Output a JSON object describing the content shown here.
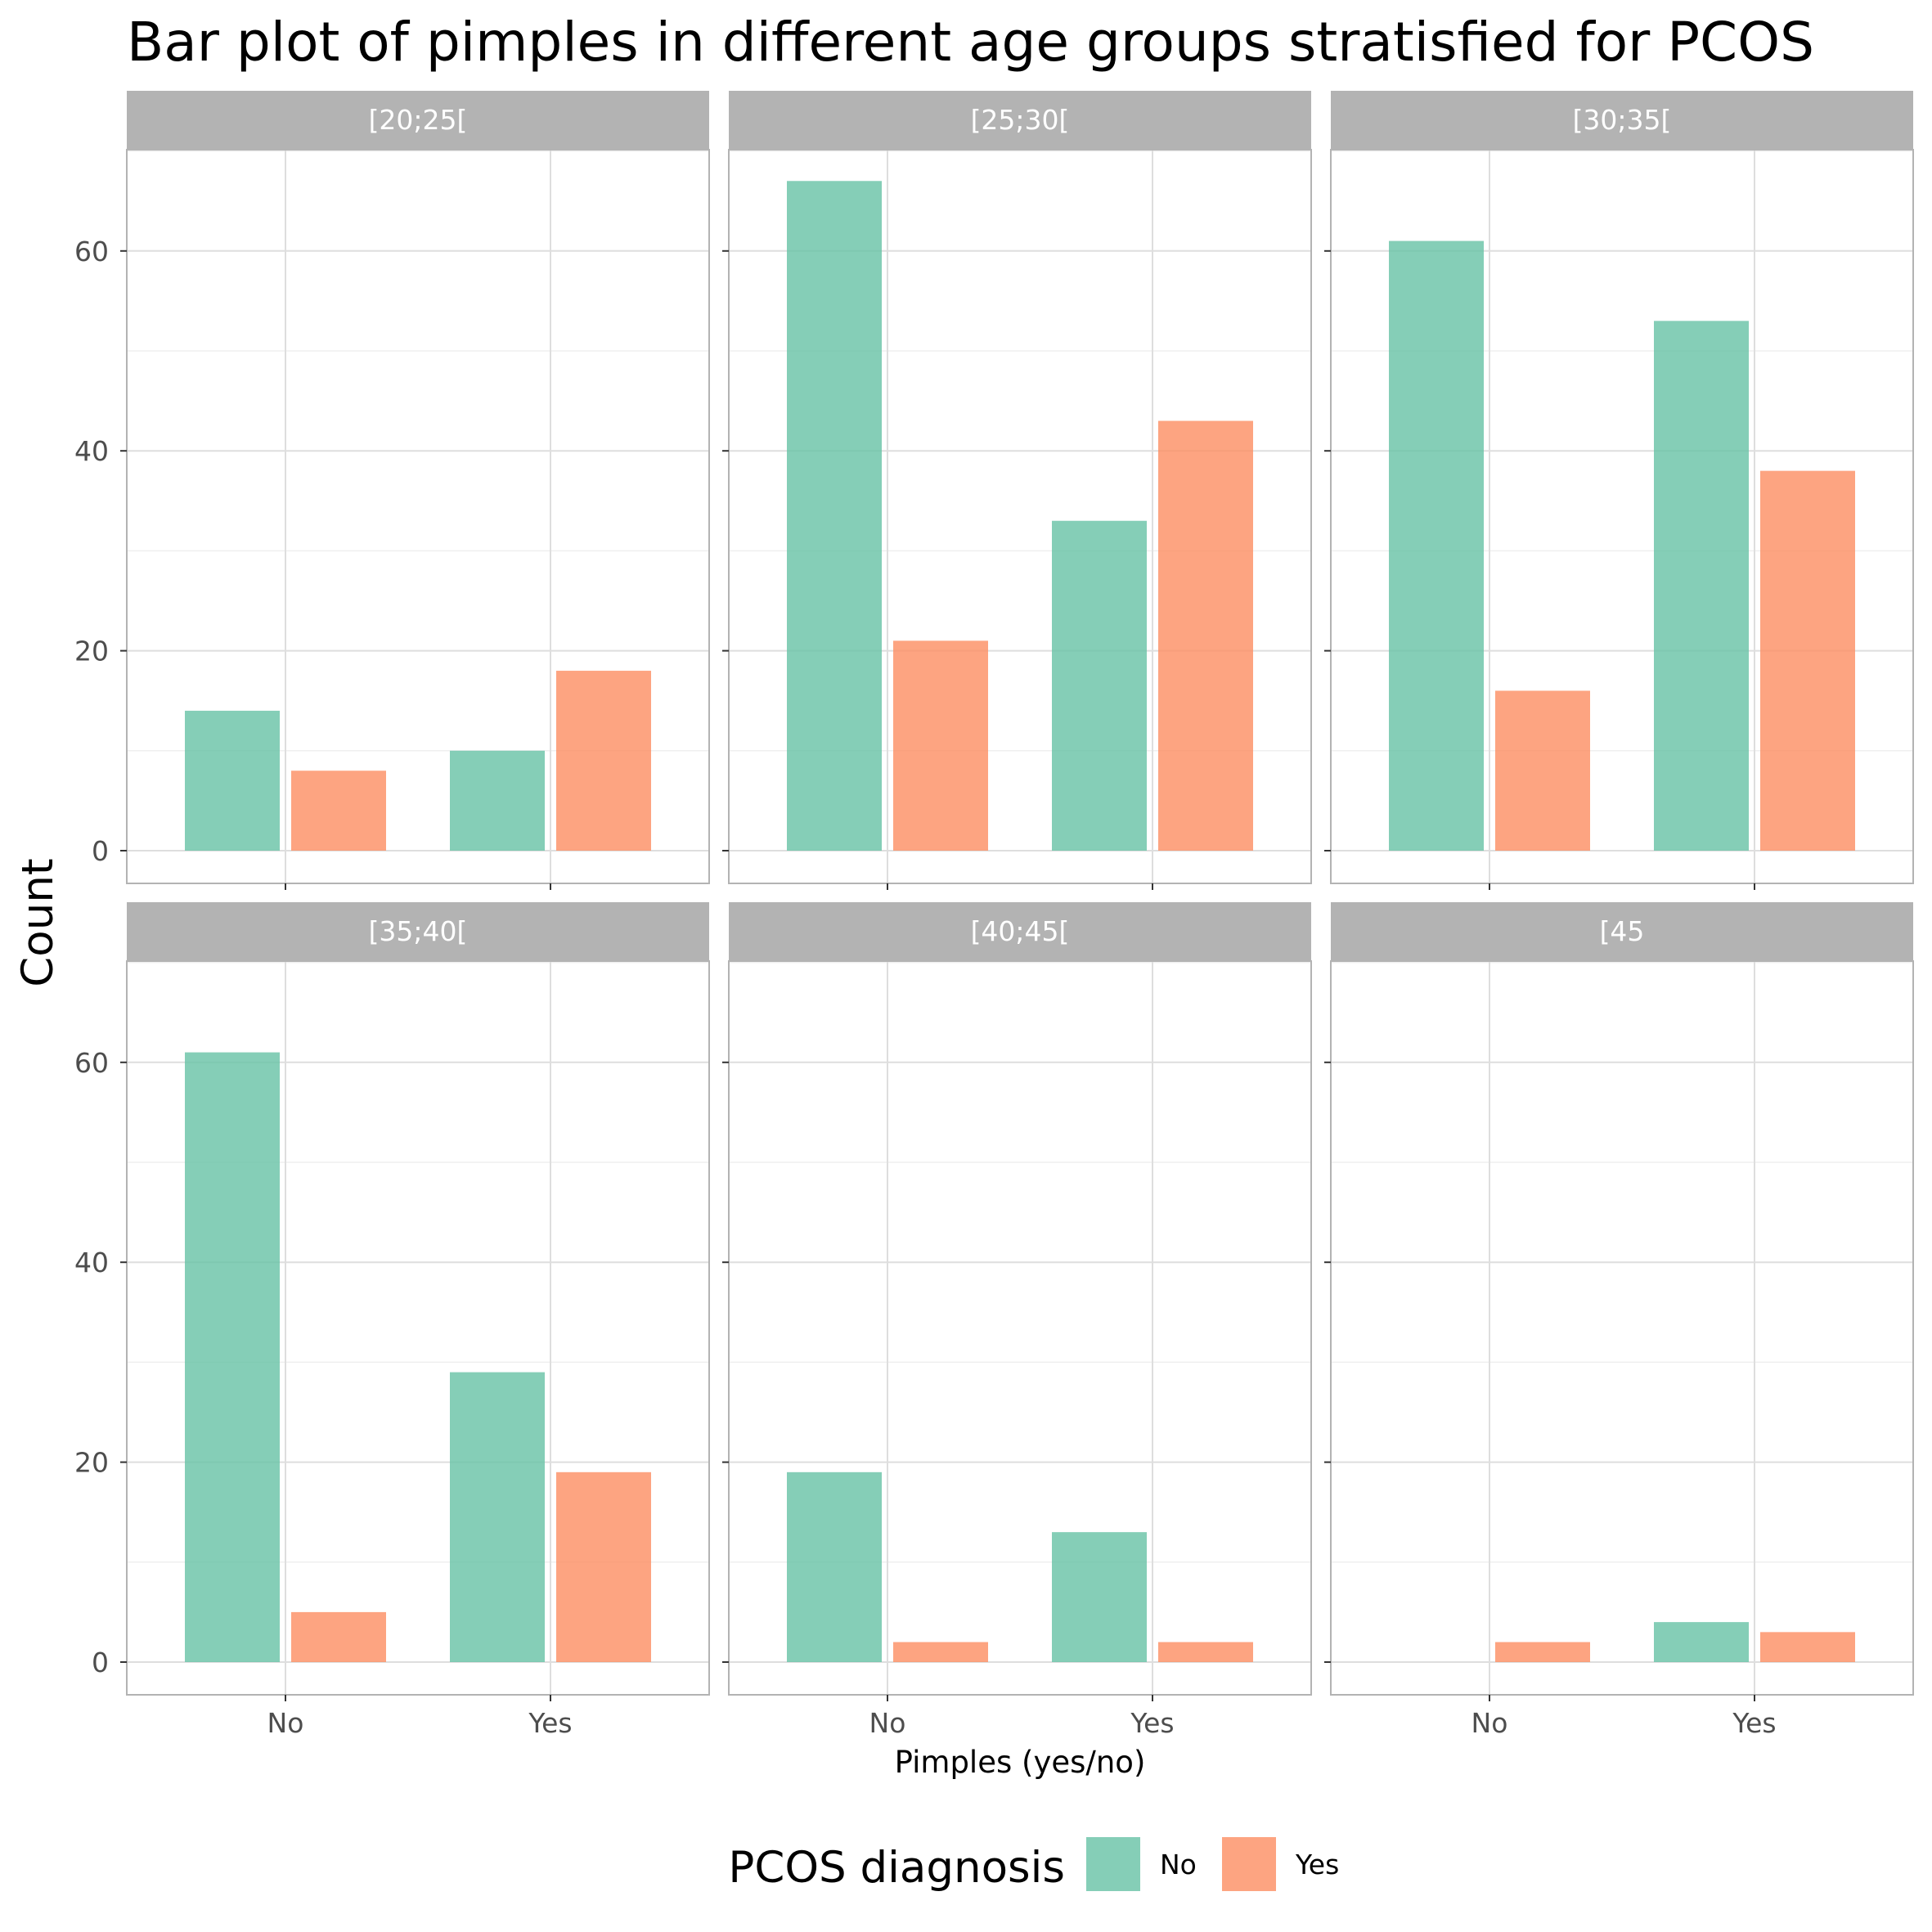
{
  "chart_data": {
    "type": "bar",
    "title": "Bar plot of pimples in different age groups stratisfied for PCOS",
    "xlabel": "Pimples (yes/no)",
    "ylabel": "Count",
    "ylim": [
      0,
      70
    ],
    "yticks": [
      0,
      20,
      40,
      60
    ],
    "categories": [
      "No",
      "Yes"
    ],
    "legend": {
      "title": "PCOS diagnosis",
      "position": "bottom",
      "entries": [
        {
          "name": "No",
          "color": "#66c2a5"
        },
        {
          "name": "Yes",
          "color": "#fc8d62"
        }
      ]
    },
    "grid": true,
    "facets": [
      {
        "label": "[20;25[",
        "series": [
          {
            "name": "No",
            "values": [
              14,
              10
            ]
          },
          {
            "name": "Yes",
            "values": [
              8,
              18
            ]
          }
        ]
      },
      {
        "label": "[25;30[",
        "series": [
          {
            "name": "No",
            "values": [
              67,
              33
            ]
          },
          {
            "name": "Yes",
            "values": [
              21,
              43
            ]
          }
        ]
      },
      {
        "label": "[30;35[",
        "series": [
          {
            "name": "No",
            "values": [
              61,
              53
            ]
          },
          {
            "name": "Yes",
            "values": [
              16,
              38
            ]
          }
        ]
      },
      {
        "label": "[35;40[",
        "series": [
          {
            "name": "No",
            "values": [
              61,
              29
            ]
          },
          {
            "name": "Yes",
            "values": [
              5,
              19
            ]
          }
        ]
      },
      {
        "label": "[40;45[",
        "series": [
          {
            "name": "No",
            "values": [
              19,
              13
            ]
          },
          {
            "name": "Yes",
            "values": [
              2,
              2
            ]
          }
        ]
      },
      {
        "label": "[45",
        "series": [
          {
            "name": "No",
            "values": [
              0,
              4
            ]
          },
          {
            "name": "Yes",
            "values": [
              2,
              3
            ]
          }
        ]
      }
    ]
  },
  "colors": {
    "panel_border": "#b3b3b3",
    "strip_fill": "#b3b3b3",
    "grid_major": "#dedede",
    "grid_minor": "#efefef"
  }
}
